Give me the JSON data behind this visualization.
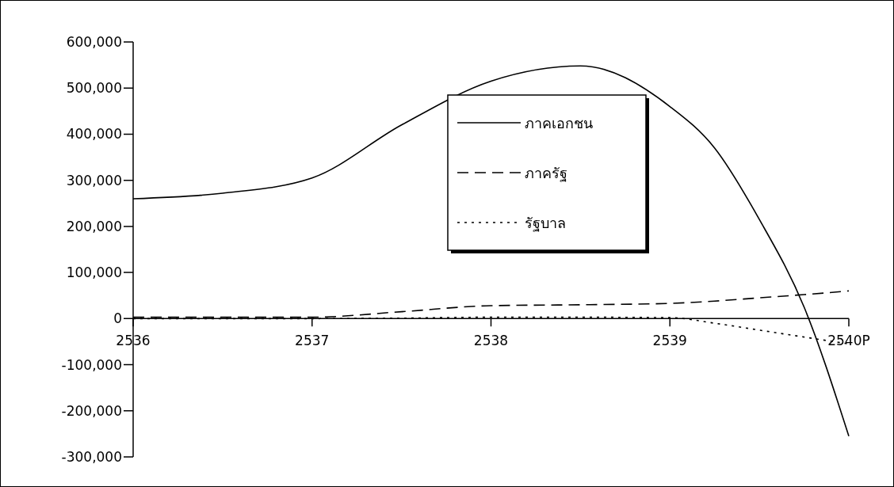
{
  "chart_data": {
    "type": "line",
    "x": [
      2536,
      2536.5,
      2537,
      2537.5,
      2538,
      2538.5,
      2539,
      2539.25,
      2539.5,
      2539.75,
      2540
    ],
    "series": [
      {
        "name": "ภาคเอกชน",
        "color": "#000000",
        "line_style": "solid",
        "values": [
          260000,
          272000,
          305000,
          420000,
          515000,
          548000,
          460000,
          370000,
          215000,
          25000,
          -255000
        ]
      },
      {
        "name": "ภาครัฐ",
        "color": "#000000",
        "line_style": "dashed",
        "values": [
          3000,
          3000,
          3000,
          15000,
          28000,
          30000,
          33000,
          38000,
          45000,
          52000,
          60000
        ]
      },
      {
        "name": "รัฐบาล",
        "color": "#000000",
        "line_style": "dotted",
        "values": [
          0,
          0,
          0,
          1000,
          3000,
          3000,
          2000,
          -10000,
          -25000,
          -40000,
          -55000
        ]
      }
    ],
    "xlim": [
      2536,
      2540
    ],
    "xticks": [
      2536,
      2537,
      2538,
      2539,
      {
        "value": 2540,
        "label": "2540P"
      }
    ],
    "ylim": [
      -300000,
      600000
    ],
    "yticks": [
      {
        "value": -300000,
        "label": "-300,000"
      },
      {
        "value": -200000,
        "label": "-200,000"
      },
      {
        "value": -100000,
        "label": "-100,000"
      },
      {
        "value": 0,
        "label": "0"
      },
      {
        "value": 100000,
        "label": "100,000"
      },
      {
        "value": 200000,
        "label": "200,000"
      },
      {
        "value": 300000,
        "label": "300,000"
      },
      {
        "value": 400000,
        "label": "400,000"
      },
      {
        "value": 500000,
        "label": "500,000"
      },
      {
        "value": 600000,
        "label": "600,000"
      }
    ],
    "grid": false,
    "legend": "top right",
    "marker": "none"
  }
}
